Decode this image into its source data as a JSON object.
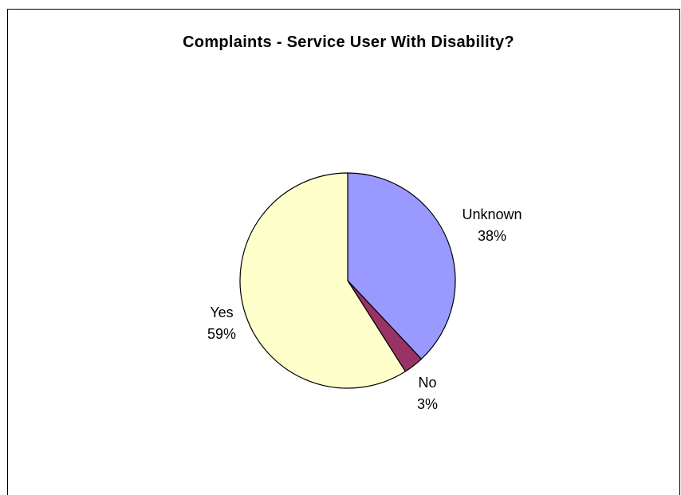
{
  "chart_data": {
    "type": "pie",
    "title": "Complaints - Service User With Disability?",
    "slices": [
      {
        "label": "Unknown",
        "value": 38,
        "value_label": "38%",
        "color": "#9999FF"
      },
      {
        "label": "No",
        "value": 3,
        "value_label": "3%",
        "color": "#993366"
      },
      {
        "label": "Yes",
        "value": 59,
        "value_label": "59%",
        "color": "#FFFFCC"
      }
    ],
    "start_angle": "12 o'clock",
    "direction": "clockwise",
    "legend": "none"
  }
}
